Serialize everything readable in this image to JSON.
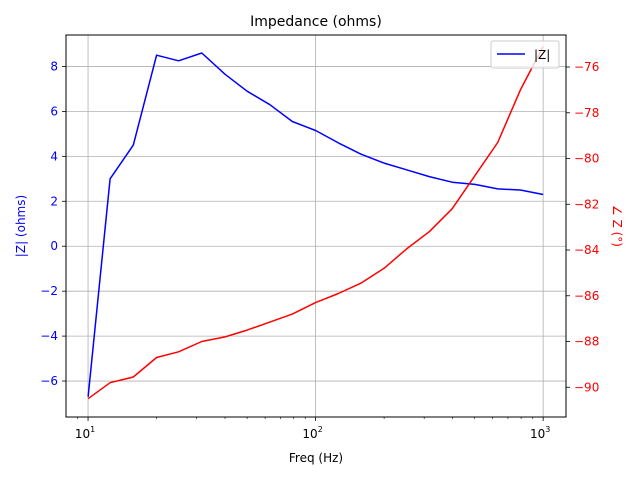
{
  "chart_data": {
    "type": "line",
    "title": "Impedance (ohms)",
    "xlabel": "Freq (Hz)",
    "ylabel_left": "|Z| (ohms)",
    "ylabel_right": "∠ Z (°)",
    "x_scale": "log",
    "xlim": [
      8.0,
      1260
    ],
    "ylim_left": [
      -7.6,
      9.4
    ],
    "ylim_right": [
      -91.3,
      -74.6
    ],
    "grid": true,
    "legend_position": "top-right",
    "x_ticks": [
      {
        "value": 10,
        "mantissa": "10",
        "exp": "1"
      },
      {
        "value": 100,
        "mantissa": "10",
        "exp": "2"
      },
      {
        "value": 1000,
        "mantissa": "10",
        "exp": "3"
      }
    ],
    "y_ticks_left": [
      -6,
      -4,
      -2,
      0,
      2,
      4,
      6,
      8
    ],
    "y_ticks_right": [
      -90,
      -88,
      -86,
      -84,
      -82,
      -80,
      -78,
      -76
    ],
    "colors": {
      "magnitude": "#0000ff",
      "phase": "#ff0000",
      "grid": "#b0b0b0",
      "axis": "#000000"
    },
    "series": [
      {
        "name": "|Z|",
        "axis": "left",
        "x": [
          10,
          12.5,
          15.8,
          20,
          25,
          31.6,
          40,
          50,
          63,
          79,
          100,
          126,
          158,
          200,
          251,
          316,
          398,
          501,
          631,
          794,
          1000
        ],
        "values": [
          -6.7,
          3.0,
          4.5,
          8.5,
          8.25,
          8.6,
          7.65,
          6.9,
          6.3,
          5.55,
          5.15,
          4.6,
          4.1,
          3.7,
          3.4,
          3.1,
          2.85,
          2.75,
          2.55,
          2.5,
          2.3
        ]
      },
      {
        "name": "",
        "axis": "right",
        "x": [
          10,
          12.5,
          15.8,
          20,
          25,
          31.6,
          40,
          50,
          63,
          79,
          100,
          126,
          158,
          200,
          251,
          316,
          398,
          501,
          631,
          794,
          1000
        ],
        "values": [
          -90.5,
          -89.8,
          -89.55,
          -88.7,
          -88.45,
          -88.0,
          -87.8,
          -87.5,
          -87.15,
          -86.8,
          -86.3,
          -85.9,
          -85.45,
          -84.8,
          -83.95,
          -83.2,
          -82.2,
          -80.75,
          -79.3,
          -77.0,
          -75.1
        ]
      }
    ]
  }
}
